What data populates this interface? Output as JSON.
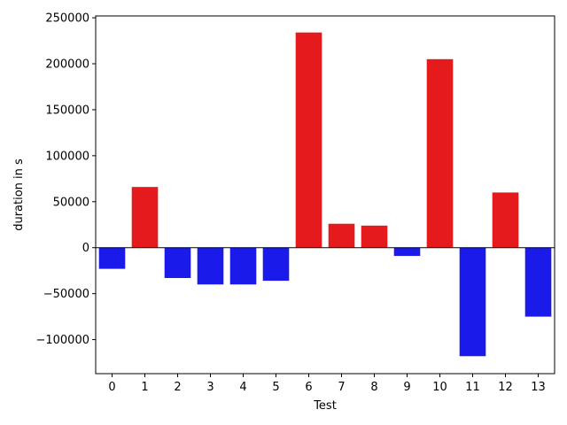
{
  "chart_data": {
    "type": "bar",
    "title": "",
    "xlabel": "Test",
    "ylabel": "duration in s",
    "categories": [
      "0",
      "1",
      "2",
      "3",
      "4",
      "5",
      "6",
      "7",
      "8",
      "9",
      "10",
      "11",
      "12",
      "13"
    ],
    "values": [
      -23000,
      66000,
      -33000,
      -40000,
      -40000,
      -36000,
      234000,
      26000,
      24000,
      -9000,
      205000,
      -118000,
      60000,
      -75000
    ],
    "ylim": [
      -137000,
      252000
    ],
    "yticks": [
      -100000,
      -50000,
      0,
      50000,
      100000,
      150000,
      200000,
      250000
    ],
    "ytick_labels": [
      "−100000",
      "−50000",
      "0",
      "50000",
      "100000",
      "150000",
      "200000",
      "250000"
    ],
    "grid": false,
    "legend": "none",
    "colors": {
      "positive": "#e41a1c",
      "negative": "#1a1aeb",
      "zero_line": "#000000"
    }
  }
}
